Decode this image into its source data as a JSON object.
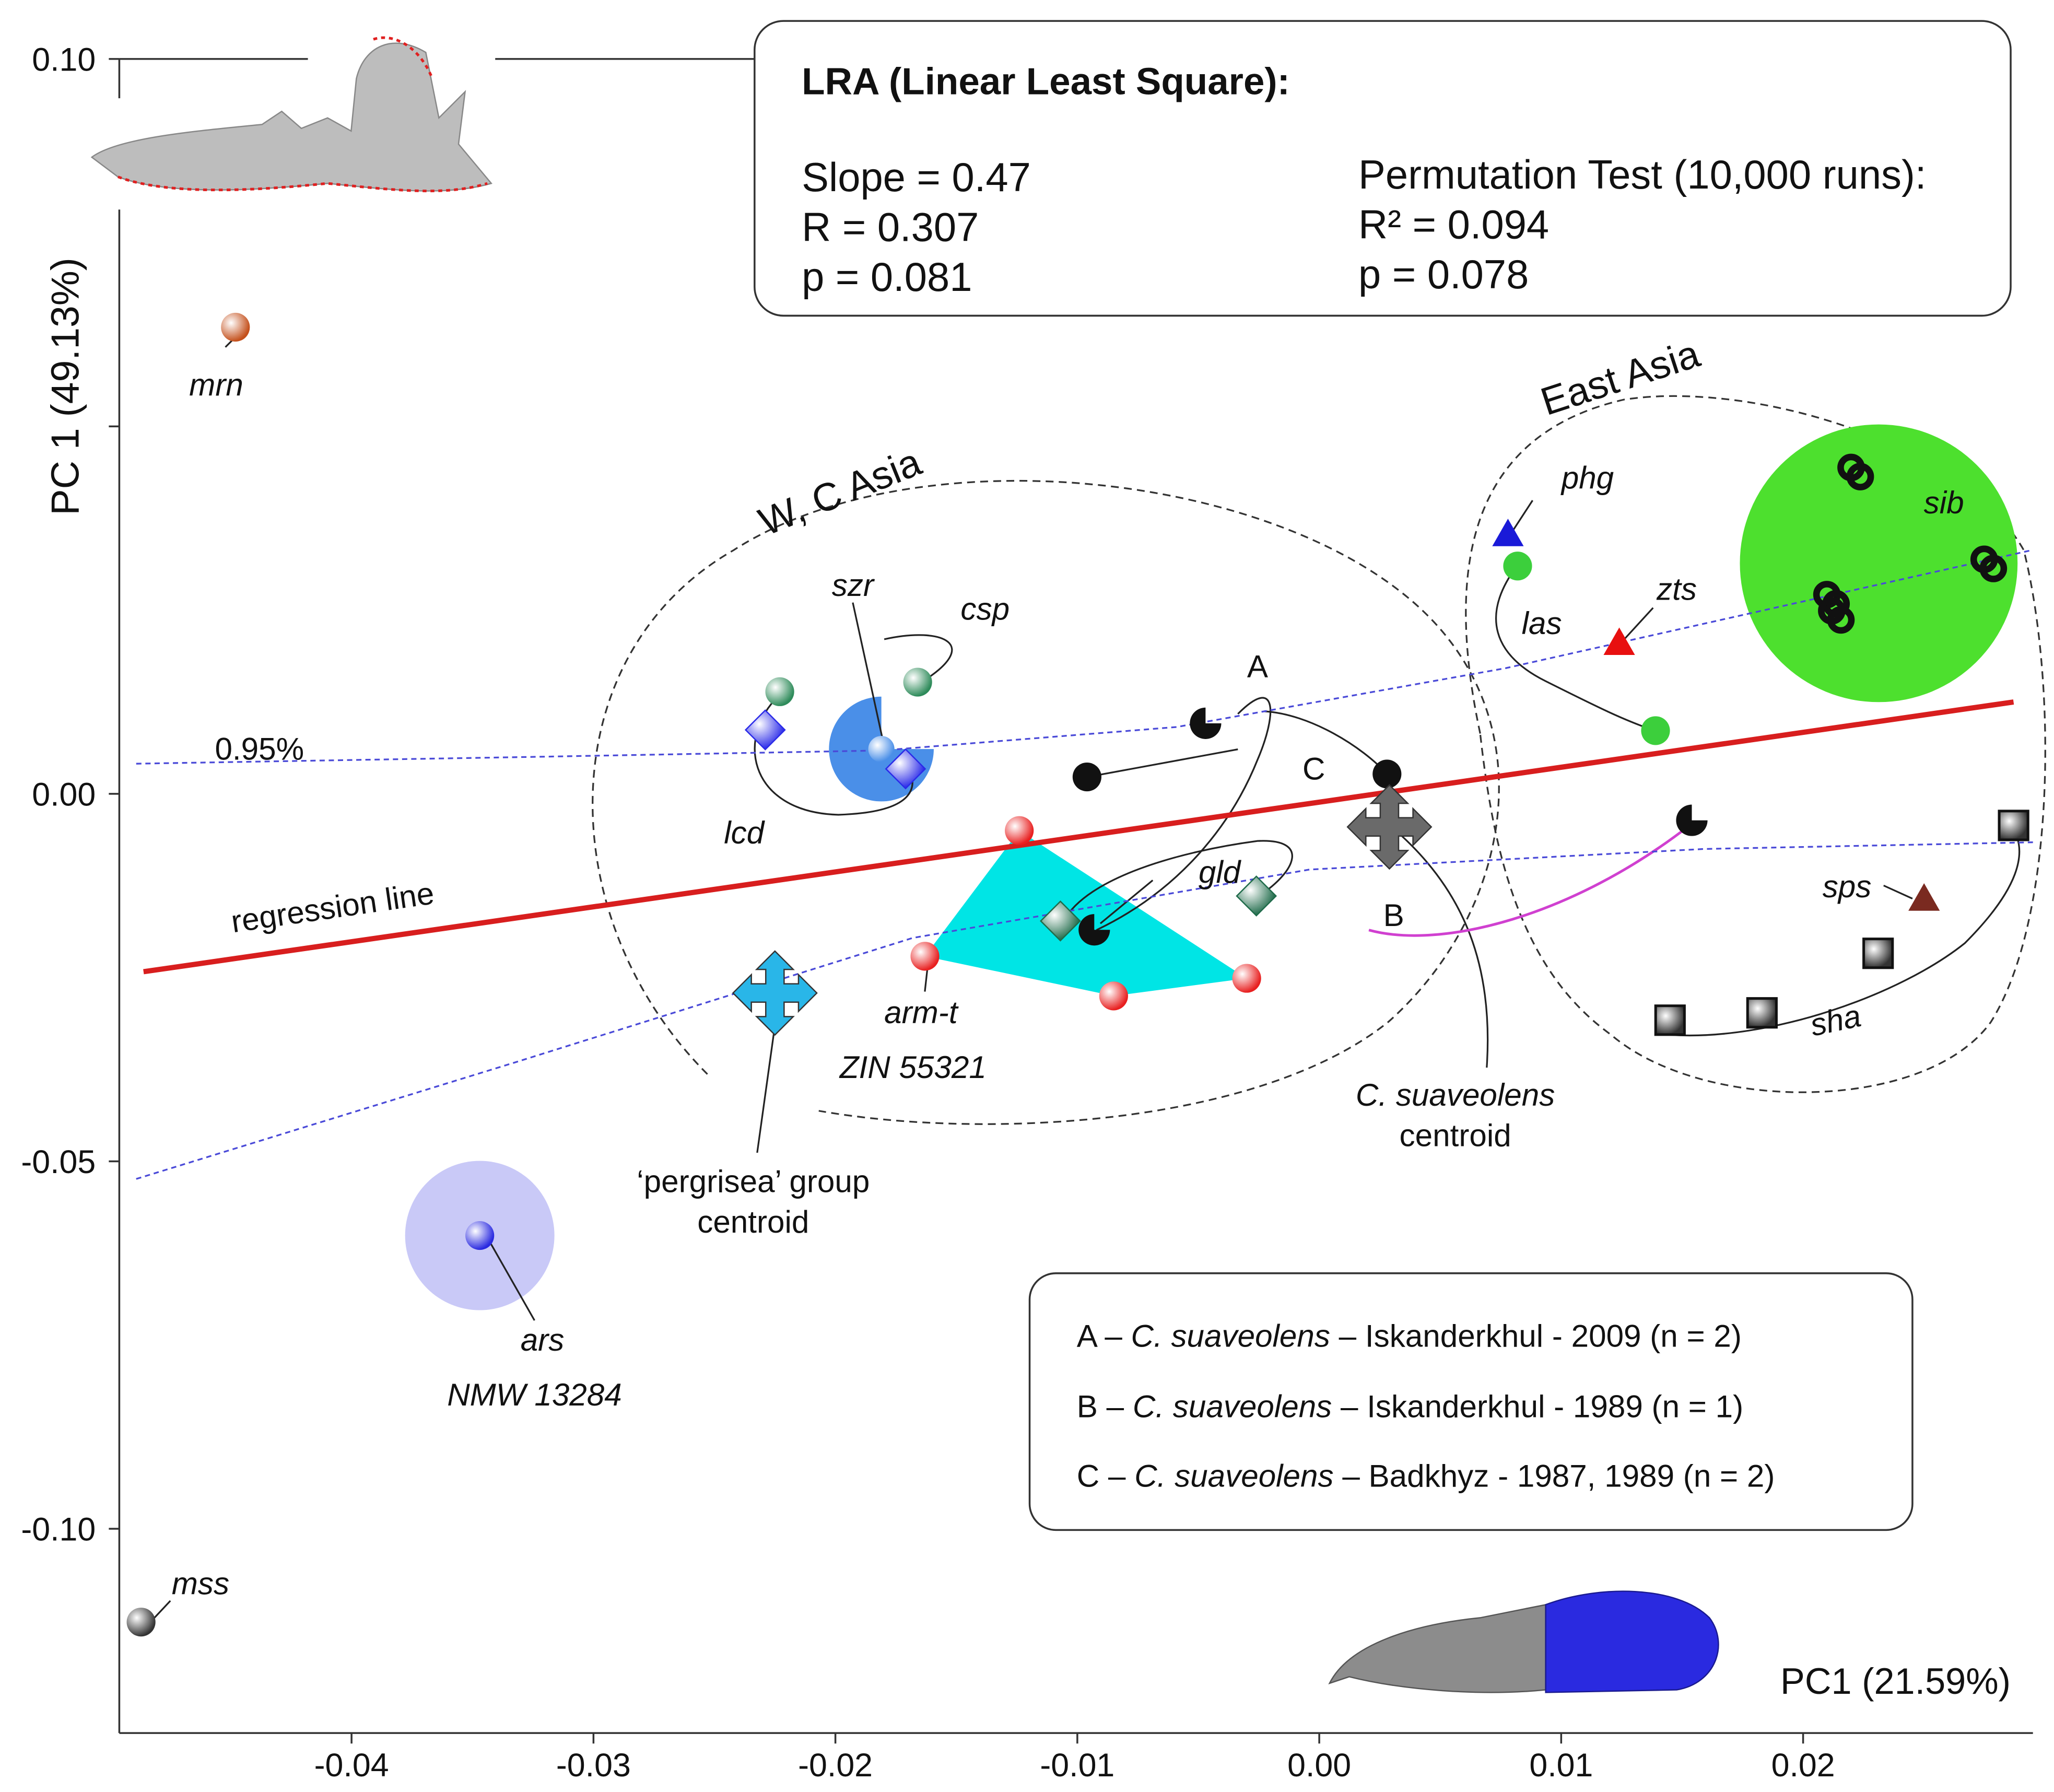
{
  "chart_data": {
    "type": "scatter",
    "xlabel": "PC1 (21.59%)",
    "ylabel": "PC 1 (49.13%)",
    "xlim": [
      -0.0496,
      0.0295
    ],
    "ylim": [
      -0.1278,
      0.1
    ],
    "xticks": [
      -0.04,
      -0.03,
      -0.02,
      -0.01,
      {
        "value": 0,
        "label": "0.00"
      },
      0.01,
      0.02
    ],
    "yticks": [
      {
        "value": -0.1,
        "label": "-0.10"
      },
      -0.05,
      {
        "value": 0,
        "label": "0.00"
      },
      {
        "value": 0.05,
        "label": null
      },
      {
        "value": 0.1,
        "label": "0.10"
      }
    ],
    "series": [
      {
        "name": "mrn",
        "marker": "sphere",
        "color": "#c4501c",
        "x": [
          -0.0448
        ],
        "y": [
          0.0635
        ]
      },
      {
        "name": "mss",
        "marker": "sphere",
        "color": "#333333",
        "x": [
          -0.0487
        ],
        "y": [
          -0.1127
        ]
      },
      {
        "name": "ars",
        "marker": "sphere",
        "color": "#2a2ae0",
        "halo": "#c9c9f7",
        "specimen": "NMW 13284",
        "x": [
          -0.0347
        ],
        "y": [
          -0.0601
        ]
      },
      {
        "name": "phg",
        "marker": "triangle",
        "color": "#1a1ad8",
        "x": [
          0.0078
        ],
        "y": [
          0.0353
        ]
      },
      {
        "name": "las",
        "marker": "circle",
        "color": "#3ccf3c",
        "x": [
          0.0082,
          0.0139
        ],
        "y": [
          0.031,
          0.0086
        ]
      },
      {
        "name": "zts",
        "marker": "triangle",
        "color": "#e81010",
        "x": [
          0.0124
        ],
        "y": [
          0.0205
        ]
      },
      {
        "name": "sib",
        "marker": "ring",
        "color": "#111111",
        "halo": "#4de02e",
        "x": [
          0.0222,
          0.0277,
          0.0212,
          0.0214
        ],
        "y": [
          0.0437,
          0.0312,
          0.0264,
          0.0242
        ]
      },
      {
        "name": "sps",
        "marker": "triangle",
        "color": "#7a2a20",
        "x": [
          0.025
        ],
        "y": [
          -0.0143
        ]
      },
      {
        "name": "sha",
        "marker": "square",
        "color": "#333333",
        "x": [
          0.0287,
          0.0231,
          0.0183,
          0.0145
        ],
        "y": [
          -0.0043,
          -0.0217,
          -0.0298,
          -0.0308
        ]
      },
      {
        "name": "A",
        "marker": "pacman",
        "color": "#111111",
        "x": [
          -0.0047,
          -0.0093
        ],
        "y": [
          0.0096,
          -0.0185
        ]
      },
      {
        "name": "B",
        "marker": "pacman",
        "color": "#111111",
        "x": [
          0.0154
        ],
        "y": [
          -0.0036
        ]
      },
      {
        "name": "C",
        "marker": "circle",
        "color": "#111111",
        "x": [
          -0.0096,
          0.0028
        ],
        "y": [
          0.0023,
          0.0027
        ]
      },
      {
        "name": "szr",
        "marker": "pacman-large",
        "color": "#4a8fe8",
        "x": [
          -0.0181
        ],
        "y": [
          0.0061
        ]
      },
      {
        "name": "csp",
        "marker": "sphere",
        "color": "#2e8b5a",
        "x": [
          -0.0223,
          -0.0166
        ],
        "y": [
          0.0139,
          0.0152
        ]
      },
      {
        "name": "lcd",
        "marker": "diamond",
        "color": "#2a2ae8",
        "x": [
          -0.0229,
          -0.0171
        ],
        "y": [
          0.0087,
          0.0034
        ]
      },
      {
        "name": "arm-t",
        "marker": "sphere",
        "color": "#e82020",
        "hull": "#00e5e5",
        "specimen": "ZIN 55321",
        "x": [
          -0.0124,
          -0.0163,
          -0.0085,
          -0.003
        ],
        "y": [
          -0.005,
          -0.0221,
          -0.0275,
          -0.0251
        ]
      },
      {
        "name": "gld",
        "marker": "diamond",
        "color": "#1f6b4a",
        "x": [
          -0.0107,
          -0.0026
        ],
        "y": [
          -0.0173,
          -0.0139
        ]
      },
      {
        "label_lines": [
          "‘pergrisea’ group",
          "centroid"
        ],
        "marker": "cross",
        "color": "#29b6e8",
        "x": [
          -0.0225
        ],
        "y": [
          -0.0271
        ]
      },
      {
        "label_lines": [
          "C. suaveolens",
          "centroid"
        ],
        "marker": "cross",
        "color": "#6a6a6a",
        "x": [
          0.0029
        ],
        "y": [
          -0.0045
        ]
      }
    ],
    "lines": [
      {
        "name": "regression line",
        "color": "#d81e1e",
        "style": "solid",
        "x": [
          -0.0486,
          0.0287
        ],
        "y": [
          -0.0242,
          0.0125
        ]
      },
      {
        "name": "0.95%",
        "color": "#4a4ad8",
        "style": "dotted",
        "x": [
          -0.0489,
          -0.0331,
          -0.0181,
          -0.0059,
          0.0077,
          0.0295,
          null,
          -0.0489,
          -0.0331,
          -0.0168,
          -0.0004,
          0.0159,
          0.0295
        ],
        "y": [
          0.0041,
          0.005,
          0.0059,
          0.0091,
          0.0171,
          0.0332,
          null,
          -0.0524,
          -0.0364,
          -0.0196,
          -0.0103,
          -0.0075,
          -0.0066
        ]
      }
    ],
    "group_labels": [
      "W, C Asia",
      "East Asia"
    ],
    "stats": {
      "title": "LRA (Linear Least Square):",
      "left": [
        "Slope = 0.47",
        "R = 0.307",
        "p = 0.081"
      ],
      "right_title": "Permutation Test (10,000 runs):",
      "right": [
        "R² = 0.094",
        "p = 0.078"
      ]
    },
    "legend_box": [
      {
        "prefix": "A – ",
        "species": "C. suaveolens",
        "suffix": " – Iskanderkhul - 2009 (n = 2)"
      },
      {
        "prefix": "B – ",
        "species": "C. suaveolens",
        "suffix": " – Iskanderkhul - 1989 (n = 1)"
      },
      {
        "prefix": "C – ",
        "species": "C. suaveolens",
        "suffix": " – Badkhyz - 1987, 1989 (n = 2)"
      }
    ]
  }
}
